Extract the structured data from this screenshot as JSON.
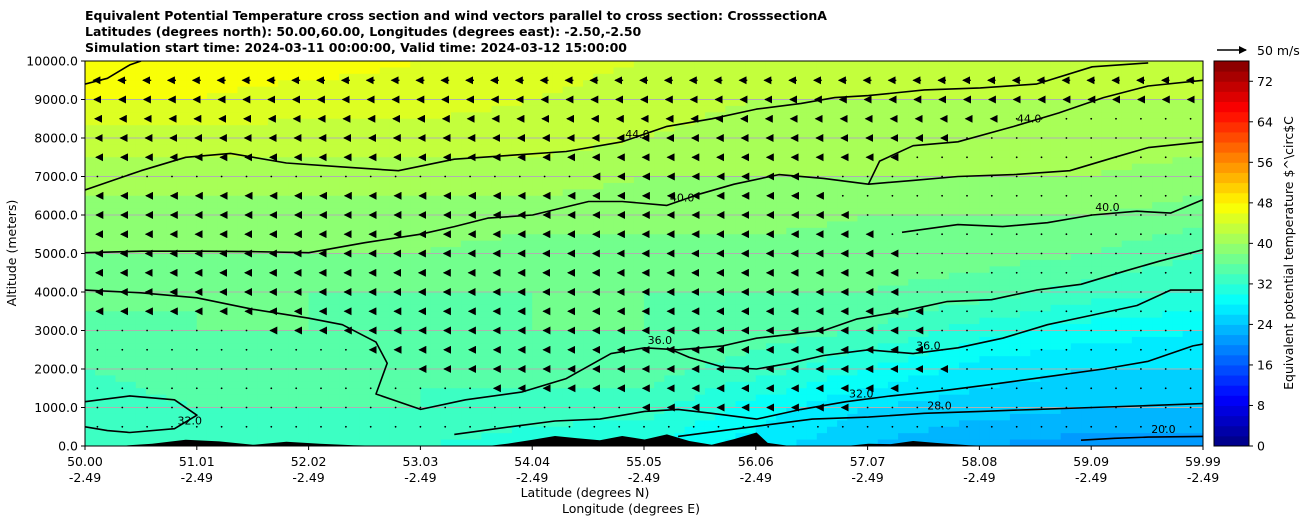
{
  "titles": {
    "line1": "Equivalent Potential Temperature cross section and wind vectors parallel to cross section: CrosssectionA",
    "line2": "Latitudes (degrees north): 50.00,60.00, Longitudes (degrees east): -2.50,-2.50",
    "line3": "Simulation start time: 2024-03-11 00:00:00, Valid time: 2024-03-12 15:00:00"
  },
  "chart_data": {
    "type": "heatmap",
    "title": "Equivalent Potential Temperature cross section and wind vectors parallel to cross section: CrosssectionA",
    "ylabel": "Altitude (meters)",
    "xlabel_lat": "Latitude (degrees N)",
    "xlabel_lon": "Longitude (degrees E)",
    "ylim": [
      0,
      10000
    ],
    "yticks": [
      0,
      1000,
      2000,
      3000,
      4000,
      5000,
      6000,
      7000,
      8000,
      9000,
      10000
    ],
    "ytick_labels": [
      "0.0",
      "1000.0",
      "2000.0",
      "3000.0",
      "4000.0",
      "5000.0",
      "6000.0",
      "7000.0",
      "8000.0",
      "9000.0",
      "10000.0"
    ],
    "xticks_lat": [
      "50.00",
      "51.01",
      "52.02",
      "53.03",
      "54.04",
      "55.05",
      "56.06",
      "57.07",
      "58.08",
      "59.09",
      "59.99"
    ],
    "xticks_lon": [
      "-2.49",
      "-2.49",
      "-2.49",
      "-2.49",
      "-2.49",
      "-2.49",
      "-2.49",
      "-2.49",
      "-2.49",
      "-2.49",
      "-2.49"
    ],
    "xlim_lat": [
      50.0,
      59.99
    ],
    "colorbar": {
      "label": "Equivalent potential temperature $^\\circ$C",
      "min": 0,
      "max": 76,
      "step": 2,
      "ticks": [
        0,
        8,
        16,
        24,
        32,
        40,
        48,
        56,
        64,
        72
      ],
      "tick_labels": [
        "0",
        "8",
        "16",
        "24",
        "32",
        "40",
        "48",
        "56",
        "64",
        "72"
      ]
    },
    "field_profile": {
      "note": "approximate equivalent potential temperature (deg C) estimated from colors",
      "latitudes": [
        50.0,
        51.0,
        52.0,
        53.0,
        54.0,
        55.0,
        56.0,
        57.0,
        58.0,
        59.0,
        60.0
      ],
      "surface_bottom": [
        33,
        33,
        33,
        32,
        31,
        30,
        27,
        24,
        22,
        21,
        21
      ],
      "level_1000m": [
        33,
        34,
        34,
        34,
        33,
        33,
        29,
        26,
        25,
        24,
        24
      ],
      "level_2000m": [
        34,
        35,
        35,
        34,
        35,
        35,
        33,
        30,
        27,
        26,
        26
      ],
      "level_3000m": [
        35,
        36,
        36,
        35,
        36,
        36,
        35,
        34,
        31,
        29,
        28
      ],
      "level_4000m": [
        37,
        36,
        36,
        36,
        36,
        36,
        36,
        36,
        35,
        33,
        32
      ],
      "level_5000m": [
        38,
        38,
        38,
        38,
        37,
        37,
        37,
        37,
        37,
        36,
        34
      ],
      "level_6000m": [
        39,
        39,
        39,
        39,
        39,
        39,
        39,
        38,
        38,
        38,
        37
      ],
      "level_7000m": [
        41,
        41,
        41,
        41,
        41,
        40,
        40,
        40,
        40,
        40,
        39
      ],
      "level_8000m": [
        43,
        43,
        43,
        43,
        43,
        42,
        41,
        41,
        41,
        41,
        41
      ],
      "level_9000m": [
        46,
        46,
        45,
        45,
        44,
        43,
        42,
        42,
        42,
        42,
        42
      ],
      "level_10000m": [
        48,
        47,
        47,
        46,
        45,
        44,
        43,
        43,
        43,
        43,
        42
      ]
    },
    "contours": [
      {
        "label": "48.0",
        "points": [
          [
            50.0,
            9400
          ],
          [
            50.2,
            9550
          ],
          [
            50.4,
            9900
          ],
          [
            50.5,
            10000
          ]
        ]
      },
      {
        "label": "44.0",
        "points": [
          [
            50.0,
            6650
          ],
          [
            50.2,
            6850
          ],
          [
            50.5,
            7150
          ],
          [
            50.9,
            7500
          ],
          [
            51.3,
            7600
          ],
          [
            51.8,
            7350
          ],
          [
            52.3,
            7250
          ],
          [
            52.8,
            7150
          ],
          [
            53.3,
            7450
          ],
          [
            53.8,
            7550
          ],
          [
            54.3,
            7650
          ],
          [
            54.8,
            7900
          ],
          [
            55.2,
            8300
          ],
          [
            55.6,
            8500
          ],
          [
            56.0,
            8750
          ],
          [
            56.4,
            8900
          ],
          [
            56.7,
            9050
          ],
          [
            57.0,
            9100
          ],
          [
            57.5,
            9250
          ],
          [
            58.0,
            9300
          ],
          [
            58.5,
            9400
          ],
          [
            59.0,
            9850
          ],
          [
            59.5,
            9950
          ]
        ]
      },
      {
        "label": "44.0",
        "points": [
          [
            57.0,
            6800
          ],
          [
            57.1,
            7400
          ],
          [
            57.4,
            7800
          ],
          [
            57.8,
            7900
          ],
          [
            58.3,
            8300
          ],
          [
            58.7,
            8650
          ],
          [
            59.1,
            9050
          ],
          [
            59.5,
            9350
          ],
          [
            59.99,
            9500
          ]
        ]
      },
      {
        "label": "40.0",
        "points": [
          [
            50.0,
            5020
          ],
          [
            50.5,
            5060
          ],
          [
            51.0,
            5060
          ],
          [
            51.5,
            5050
          ],
          [
            52.0,
            5020
          ],
          [
            52.5,
            5280
          ],
          [
            53.0,
            5500
          ],
          [
            53.3,
            5700
          ],
          [
            53.6,
            5920
          ],
          [
            54.0,
            6000
          ],
          [
            54.5,
            6350
          ],
          [
            54.8,
            6350
          ],
          [
            55.2,
            6250
          ],
          [
            55.5,
            6550
          ],
          [
            55.8,
            6800
          ],
          [
            56.2,
            7050
          ],
          [
            56.6,
            6950
          ],
          [
            57.0,
            6800
          ],
          [
            57.4,
            6900
          ],
          [
            57.8,
            7000
          ],
          [
            58.3,
            7050
          ],
          [
            58.8,
            7150
          ],
          [
            59.2,
            7500
          ],
          [
            59.5,
            7750
          ],
          [
            59.99,
            7900
          ]
        ]
      },
      {
        "label": "40.0",
        "points": [
          [
            57.3,
            5550
          ],
          [
            57.8,
            5750
          ],
          [
            58.2,
            5700
          ],
          [
            58.6,
            5800
          ],
          [
            59.0,
            6000
          ],
          [
            59.4,
            6100
          ],
          [
            59.7,
            6050
          ],
          [
            59.99,
            6400
          ]
        ]
      },
      {
        "label": "36.0",
        "points": [
          [
            50.0,
            4050
          ],
          [
            50.5,
            3980
          ],
          [
            51.0,
            3850
          ],
          [
            51.5,
            3550
          ],
          [
            52.0,
            3320
          ],
          [
            52.3,
            3150
          ],
          [
            52.6,
            2700
          ],
          [
            52.7,
            2150
          ],
          [
            52.6,
            1350
          ],
          [
            53.0,
            950
          ],
          [
            53.4,
            1200
          ],
          [
            53.9,
            1400
          ],
          [
            54.3,
            1750
          ],
          [
            54.7,
            2400
          ],
          [
            55.0,
            2550
          ],
          [
            55.3,
            2500
          ],
          [
            55.7,
            2600
          ],
          [
            56.0,
            2800
          ],
          [
            56.3,
            2900
          ],
          [
            56.6,
            3000
          ],
          [
            56.9,
            3300
          ],
          [
            57.3,
            3500
          ],
          [
            57.7,
            3750
          ],
          [
            58.1,
            3800
          ],
          [
            58.5,
            4050
          ],
          [
            58.9,
            4200
          ],
          [
            59.3,
            4550
          ],
          [
            59.6,
            4800
          ],
          [
            59.99,
            5100
          ]
        ]
      },
      {
        "label": "36.0",
        "points": [
          [
            59.99,
            4050
          ],
          [
            59.7,
            4050
          ],
          [
            59.4,
            3650
          ],
          [
            59.0,
            3400
          ],
          [
            58.6,
            3150
          ],
          [
            58.2,
            2800
          ],
          [
            57.8,
            2550
          ],
          [
            57.4,
            2400
          ],
          [
            57.0,
            2500
          ],
          [
            56.6,
            2350
          ],
          [
            56.3,
            2150
          ],
          [
            56.0,
            2000
          ],
          [
            55.7,
            2050
          ],
          [
            55.4,
            2300
          ],
          [
            55.2,
            2550
          ]
        ]
      },
      {
        "label": "32.0",
        "points": [
          [
            50.0,
            1150
          ],
          [
            50.4,
            1300
          ],
          [
            50.8,
            1200
          ],
          [
            51.0,
            800
          ],
          [
            50.8,
            450
          ],
          [
            50.4,
            350
          ],
          [
            50.2,
            400
          ],
          [
            50.0,
            500
          ]
        ]
      },
      {
        "label": "32.0",
        "points": [
          [
            53.3,
            300
          ],
          [
            53.8,
            500
          ],
          [
            54.2,
            650
          ],
          [
            54.6,
            700
          ],
          [
            55.0,
            900
          ],
          [
            55.3,
            950
          ],
          [
            55.6,
            850
          ],
          [
            56.0,
            700
          ],
          [
            56.4,
            950
          ],
          [
            56.8,
            1150
          ],
          [
            57.2,
            1300
          ],
          [
            57.7,
            1450
          ],
          [
            58.1,
            1600
          ],
          [
            58.6,
            1800
          ],
          [
            59.1,
            2000
          ],
          [
            59.5,
            2200
          ],
          [
            59.9,
            2600
          ],
          [
            59.99,
            2650
          ]
        ]
      },
      {
        "label": "28.0",
        "points": [
          [
            55.3,
            250
          ],
          [
            55.7,
            400
          ],
          [
            56.1,
            550
          ],
          [
            56.5,
            700
          ],
          [
            57.0,
            750
          ],
          [
            57.5,
            850
          ],
          [
            58.0,
            900
          ],
          [
            58.5,
            950
          ],
          [
            59.0,
            1000
          ],
          [
            59.5,
            1050
          ],
          [
            59.99,
            1100
          ]
        ]
      },
      {
        "label": "20.0",
        "points": [
          [
            58.9,
            150
          ],
          [
            59.2,
            200
          ],
          [
            59.5,
            230
          ],
          [
            59.99,
            250
          ]
        ]
      }
    ],
    "terrain": [
      [
        50.0,
        0
      ],
      [
        50.3,
        0
      ],
      [
        50.6,
        60
      ],
      [
        50.9,
        160
      ],
      [
        51.2,
        120
      ],
      [
        51.5,
        30
      ],
      [
        51.8,
        110
      ],
      [
        52.1,
        60
      ],
      [
        52.4,
        20
      ],
      [
        52.7,
        0
      ],
      [
        53.6,
        0
      ],
      [
        53.8,
        70
      ],
      [
        54.0,
        160
      ],
      [
        54.2,
        260
      ],
      [
        54.4,
        200
      ],
      [
        54.6,
        150
      ],
      [
        54.8,
        260
      ],
      [
        55.0,
        170
      ],
      [
        55.2,
        300
      ],
      [
        55.4,
        130
      ],
      [
        55.6,
        30
      ],
      [
        55.8,
        180
      ],
      [
        56.0,
        350
      ],
      [
        56.1,
        80
      ],
      [
        56.3,
        0
      ],
      [
        56.8,
        0
      ],
      [
        57.0,
        60
      ],
      [
        57.2,
        50
      ],
      [
        57.4,
        130
      ],
      [
        57.6,
        80
      ],
      [
        57.9,
        20
      ],
      [
        58.1,
        0
      ]
    ],
    "wind": {
      "reference_label": "50 m/s",
      "reference_speed_ms": 50,
      "direction": "negative (southward, parallel to section)",
      "profile_levels_m": [
        10000,
        9500,
        9000,
        8000,
        7000,
        6000,
        5000,
        4000,
        3000,
        2000,
        1000,
        500
      ],
      "profile_speed_north_ms": [
        12,
        14,
        11,
        6,
        3,
        4,
        5,
        5,
        3,
        2,
        2,
        2
      ],
      "profile_speed_south_ms": [
        16,
        13,
        10,
        6,
        4,
        4,
        5,
        5,
        6,
        7,
        5,
        3
      ]
    }
  }
}
